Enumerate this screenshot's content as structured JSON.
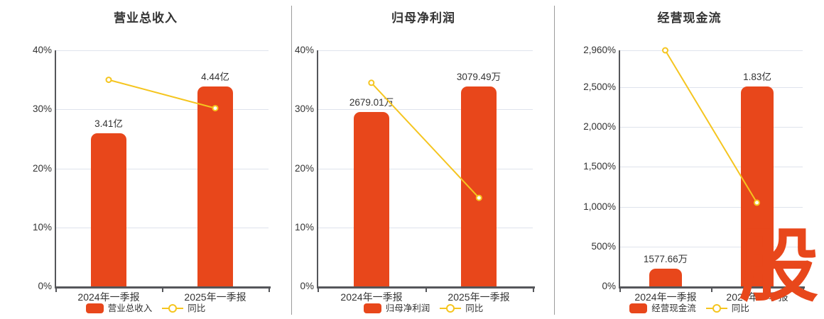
{
  "watermark": {
    "text": "股",
    "color": "#e8471b"
  },
  "colors": {
    "bar": "#e8471b",
    "line": "#f5c51f",
    "grid": "#dfe3ec",
    "axis": "#55565a",
    "text": "#333333",
    "divider": "#9b9b9b"
  },
  "chart_data": [
    {
      "type": "bar",
      "title": "营业总收入",
      "categories": [
        "2024年一季报",
        "2025年一季报"
      ],
      "series": [
        {
          "name": "营业总收入",
          "type": "bar",
          "data_labels": [
            "3.41亿",
            "4.44亿"
          ],
          "plotted_axis_values": [
            25.9,
            33.9
          ]
        },
        {
          "name": "同比",
          "type": "line",
          "plotted_axis_values": [
            35.0,
            30.2
          ]
        }
      ],
      "xlabel": "",
      "ylabel": "",
      "ylim": [
        0,
        40
      ],
      "y_ticks": [
        {
          "value": 0,
          "label": "0%"
        },
        {
          "value": 10,
          "label": "10%"
        },
        {
          "value": 20,
          "label": "20%"
        },
        {
          "value": 30,
          "label": "30%"
        },
        {
          "value": 40,
          "label": "40%"
        }
      ],
      "grid": true,
      "legend": [
        "营业总收入",
        "同比"
      ],
      "legend_position": "bottom"
    },
    {
      "type": "bar",
      "title": "归母净利润",
      "categories": [
        "2024年一季报",
        "2025年一季报"
      ],
      "series": [
        {
          "name": "归母净利润",
          "type": "bar",
          "data_labels": [
            "2679.01万",
            "3079.49万"
          ],
          "plotted_axis_values": [
            29.6,
            33.9
          ]
        },
        {
          "name": "同比",
          "type": "line",
          "plotted_axis_values": [
            34.5,
            15.0
          ]
        }
      ],
      "xlabel": "",
      "ylabel": "",
      "ylim": [
        0,
        40
      ],
      "y_ticks": [
        {
          "value": 0,
          "label": "0%"
        },
        {
          "value": 10,
          "label": "10%"
        },
        {
          "value": 20,
          "label": "20%"
        },
        {
          "value": 30,
          "label": "30%"
        },
        {
          "value": 40,
          "label": "40%"
        }
      ],
      "grid": true,
      "legend": [
        "归母净利润",
        "同比"
      ],
      "legend_position": "bottom"
    },
    {
      "type": "bar",
      "title": "经营现金流",
      "categories": [
        "2024年一季报",
        "2025年一季报"
      ],
      "series": [
        {
          "name": "经营现金流",
          "type": "bar",
          "data_labels": [
            "1577.66万",
            "1.83亿"
          ],
          "plotted_axis_values": [
            221,
            2504
          ]
        },
        {
          "name": "同比",
          "type": "line",
          "plotted_axis_values": [
            2960,
            1050
          ]
        }
      ],
      "xlabel": "",
      "ylabel": "",
      "ylim": [
        0,
        2960
      ],
      "y_ticks": [
        {
          "value": 0,
          "label": "0%"
        },
        {
          "value": 500,
          "label": "500%"
        },
        {
          "value": 1000,
          "label": "1,000%"
        },
        {
          "value": 1500,
          "label": "1,500%"
        },
        {
          "value": 2000,
          "label": "2,000%"
        },
        {
          "value": 2500,
          "label": "2,500%"
        },
        {
          "value": 2960,
          "label": "2,960%"
        }
      ],
      "grid": true,
      "legend": [
        "经营现金流",
        "同比"
      ],
      "legend_position": "bottom"
    }
  ]
}
